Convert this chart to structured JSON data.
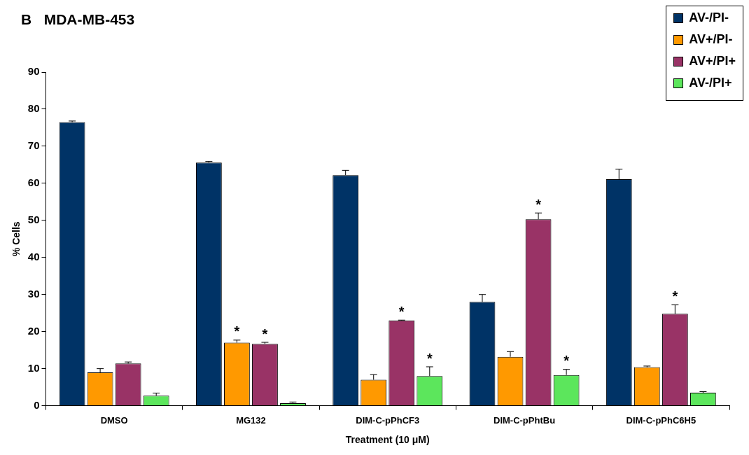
{
  "chart_data": {
    "type": "bar",
    "title": "B   MDA-MB-453",
    "xlabel": "Treatment (10 μM)",
    "ylabel": "% Cells",
    "categories": [
      "DMSO",
      "MG132",
      "DIM-C-pPhCF3",
      "DIM-C-pPhtBu",
      "DIM-C-pPhC6H5"
    ],
    "series": [
      {
        "name": "AV-/PI-",
        "color": "#003366",
        "values": [
          76.5,
          65.6,
          62.2,
          28.0,
          61.1
        ],
        "errors": [
          0.3,
          0.3,
          1.3,
          2.0,
          2.7
        ]
      },
      {
        "name": "AV+/PI-",
        "color": "#ff9900",
        "values": [
          9.0,
          17.0,
          7.0,
          13.2,
          10.4
        ],
        "errors": [
          1.0,
          0.7,
          1.4,
          1.4,
          0.3
        ]
      },
      {
        "name": "AV+/PI+",
        "color": "#993366",
        "values": [
          11.4,
          16.7,
          23.0,
          50.3,
          24.8
        ],
        "errors": [
          0.4,
          0.4,
          0.1,
          1.7,
          2.4
        ]
      },
      {
        "name": "AV-/PI+",
        "color": "#5ce65c",
        "values": [
          2.7,
          0.7,
          8.0,
          8.3,
          3.5
        ],
        "errors": [
          0.7,
          0.3,
          2.5,
          1.5,
          0.3
        ]
      }
    ],
    "ylim": [
      0,
      90
    ],
    "yticks": [
      0,
      10,
      20,
      30,
      40,
      50,
      60,
      70,
      80,
      90
    ],
    "grid": false,
    "legend": "top right",
    "annotations": [
      {
        "text": "*",
        "x": "MG132",
        "y": 17.0
      },
      {
        "text": "*",
        "x": "MG132",
        "y": 16.7
      },
      {
        "text": "*",
        "x": "DIM-C-pPhCF3",
        "y": 23.0
      },
      {
        "text": "*",
        "x": "DIM-C-pPhCF3",
        "y": 8.0
      },
      {
        "text": "*",
        "x": "DIM-C-pPhtBu",
        "y": 50.3
      },
      {
        "text": "*",
        "x": "DIM-C-pPhtBu",
        "y": 8.3
      },
      {
        "text": "*",
        "x": "DIM-C-pPhC6H5",
        "y": 24.8
      }
    ]
  }
}
